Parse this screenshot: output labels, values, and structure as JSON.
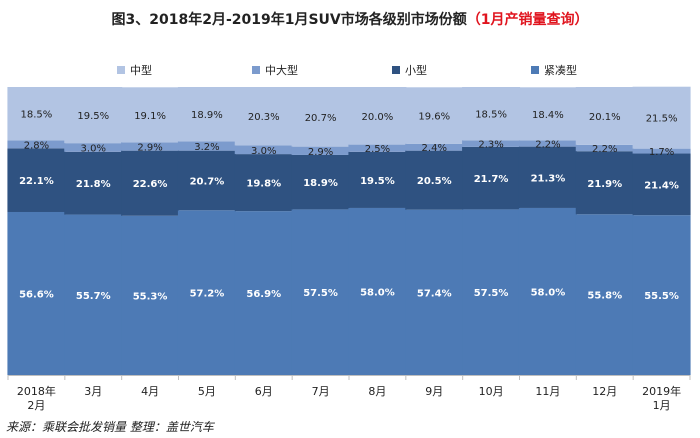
{
  "title": {
    "main": "图3、2018年2月-2019年1月SUV市场各级别市场份额",
    "highlight": "（1月产销量查询）"
  },
  "source": "来源：乘联会批发销量   整理：盖世汽车",
  "chart_data": {
    "type": "bar",
    "stacked": true,
    "categories": [
      [
        "2018年",
        "2月"
      ],
      [
        "3月"
      ],
      [
        "4月"
      ],
      [
        "5月"
      ],
      [
        "6月"
      ],
      [
        "7月"
      ],
      [
        "8月"
      ],
      [
        "9月"
      ],
      [
        "10月"
      ],
      [
        "11月"
      ],
      [
        "12月"
      ],
      [
        "2019年",
        "1月"
      ]
    ],
    "series": [
      {
        "name": "紧凑型",
        "color": "#4d7ab5",
        "values": [
          56.6,
          55.7,
          55.3,
          57.2,
          56.9,
          57.5,
          58.0,
          57.4,
          57.5,
          58.0,
          55.8,
          55.5
        ]
      },
      {
        "name": "小型",
        "color": "#2f5281",
        "values": [
          22.1,
          21.8,
          22.6,
          20.7,
          19.8,
          18.9,
          19.5,
          20.5,
          21.7,
          21.3,
          21.9,
          21.4
        ]
      },
      {
        "name": "中大型",
        "color": "#7c9bcd",
        "values": [
          2.8,
          3.0,
          2.9,
          3.2,
          3.0,
          2.9,
          2.5,
          2.4,
          2.3,
          2.2,
          2.2,
          1.7
        ]
      },
      {
        "name": "中型",
        "color": "#b2c4e3",
        "values": [
          18.5,
          19.5,
          19.1,
          18.9,
          20.3,
          20.7,
          20.0,
          19.6,
          18.5,
          18.4,
          20.1,
          21.5
        ]
      }
    ],
    "legend_order": [
      "中型",
      "中大型",
      "小型",
      "紧凑型"
    ],
    "value_format": "{v}%",
    "ylim": [
      0,
      100
    ],
    "legend_position": "top",
    "grid": false
  }
}
